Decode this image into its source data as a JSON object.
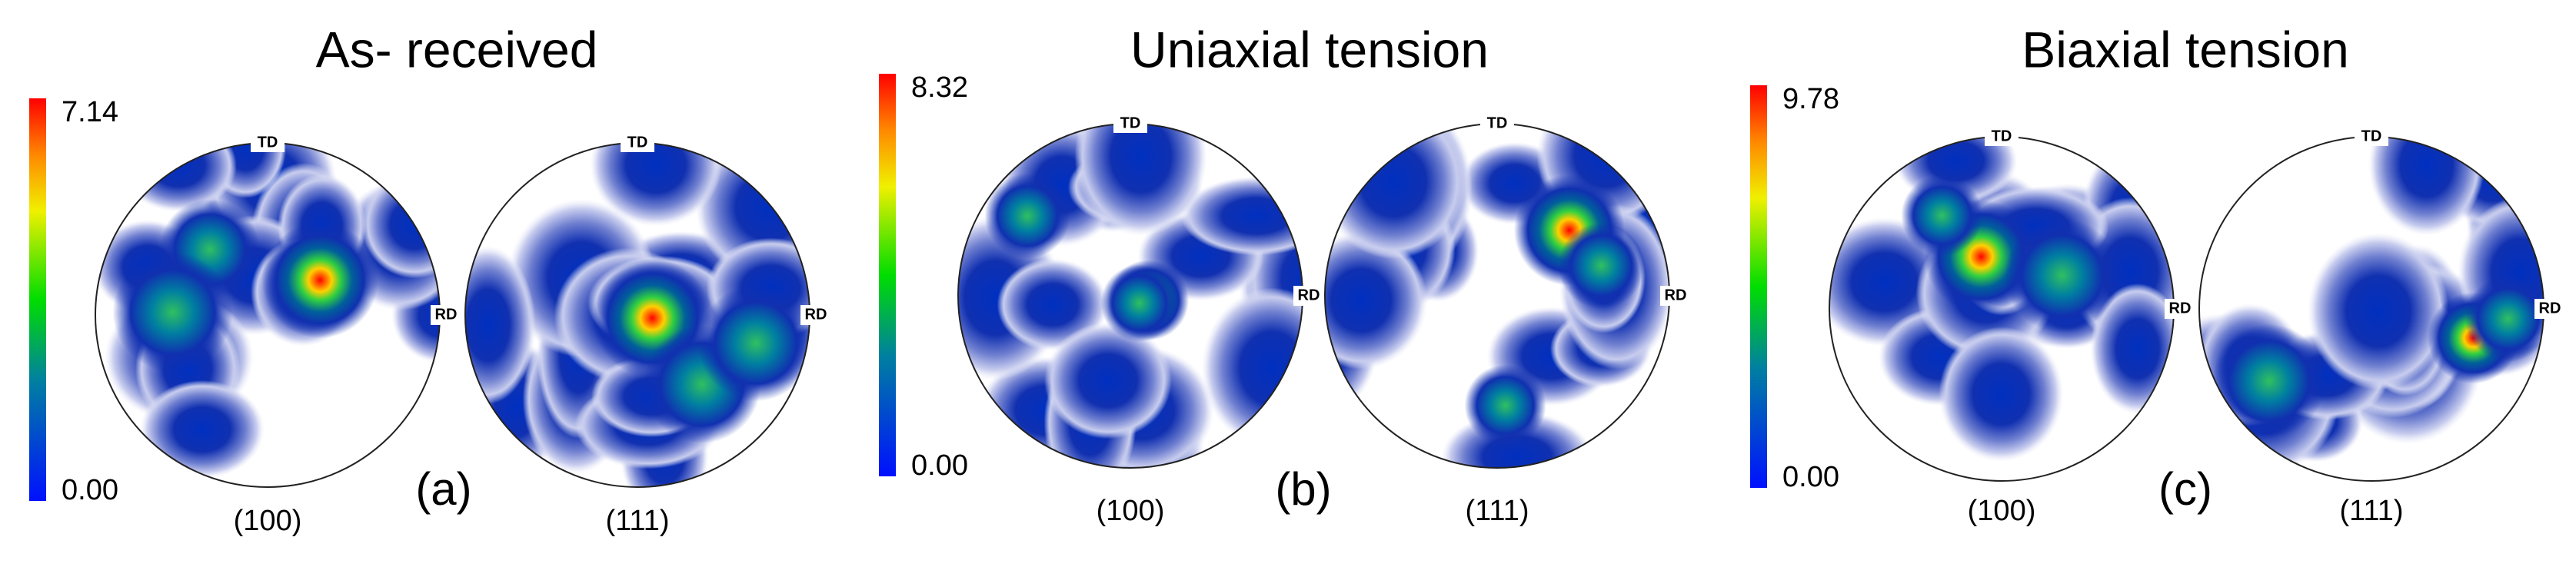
{
  "panels": [
    {
      "title": "As- received",
      "colorbar": {
        "max": "7.14",
        "min": "0.00"
      },
      "tag": "(a)",
      "figures": [
        {
          "label": "(100)",
          "top": "TD",
          "right": "RD"
        },
        {
          "label": "(111)",
          "top": "TD",
          "right": "RD"
        }
      ]
    },
    {
      "title": "Uniaxial tension",
      "colorbar": {
        "max": "8.32",
        "min": "0.00"
      },
      "tag": "(b)",
      "figures": [
        {
          "label": "(100)",
          "top": "TD",
          "right": "RD"
        },
        {
          "label": "(111)",
          "top": "TD",
          "right": "RD"
        }
      ]
    },
    {
      "title": "Biaxial tension",
      "colorbar": {
        "max": "9.78",
        "min": "0.00"
      },
      "tag": "(c)",
      "figures": [
        {
          "label": "(100)",
          "top": "TD",
          "right": "RD"
        },
        {
          "label": "(111)",
          "top": "TD",
          "right": "RD"
        }
      ]
    }
  ]
}
